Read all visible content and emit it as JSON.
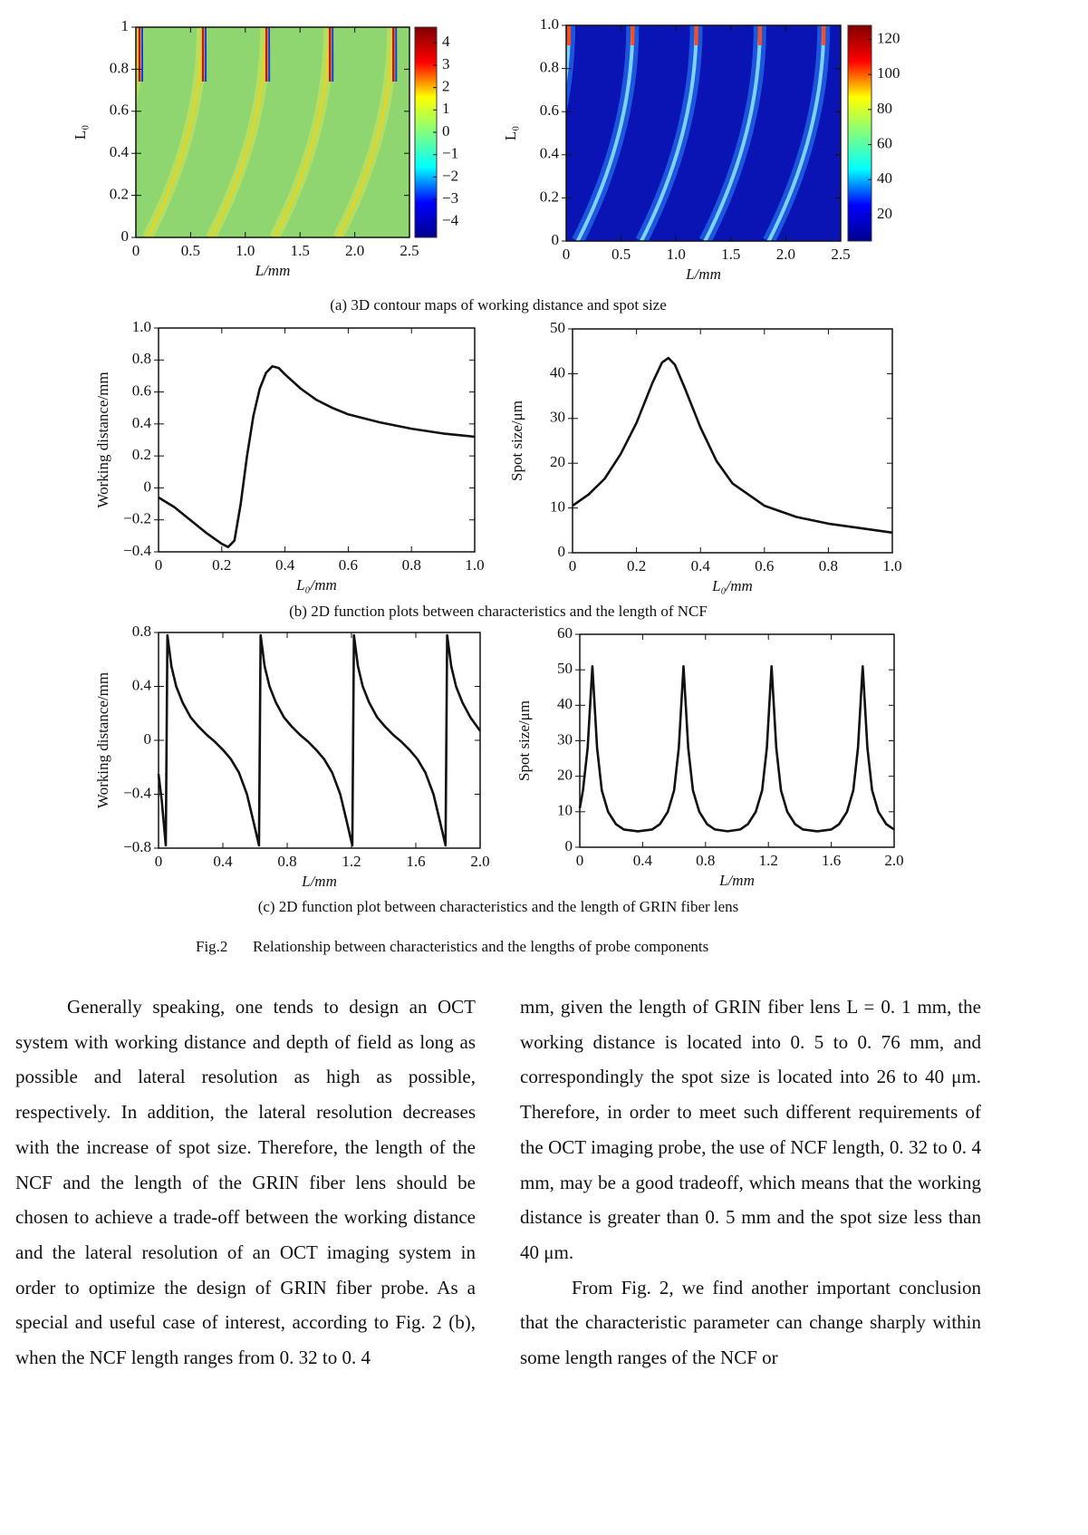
{
  "chart_data": [
    {
      "type": "contour",
      "xlabel": "L/mm",
      "ylabel": "L₀",
      "xlim": [
        0,
        2.5
      ],
      "ylim": [
        0,
        1
      ],
      "xticks": [
        0,
        0.5,
        {
          "value": 1,
          "label": "1.0"
        },
        1.5,
        {
          "value": 2,
          "label": "2.0"
        },
        2.5
      ],
      "yticks": [
        0,
        0.2,
        0.4,
        0.6,
        0.8,
        1
      ],
      "colormap": "jet",
      "clim": [
        -4.7,
        4.7
      ],
      "cticks": [
        {
          "value": -4,
          "label": "−4"
        },
        {
          "value": -3,
          "label": "−3"
        },
        {
          "value": -2,
          "label": "−2"
        },
        {
          "value": -1,
          "label": "−1"
        },
        0,
        1,
        2,
        3,
        4
      ]
    },
    {
      "type": "contour",
      "xlabel": "L/mm",
      "ylabel": "L₀",
      "xlim": [
        0,
        2.5
      ],
      "ylim": [
        0,
        1
      ],
      "xticks": [
        0,
        0.5,
        {
          "value": 1,
          "label": "1.0"
        },
        1.5,
        {
          "value": 2,
          "label": "2.0"
        },
        2.5
      ],
      "yticks": [
        0,
        0.2,
        0.4,
        0.6,
        0.8,
        {
          "value": 1,
          "label": "1.0"
        }
      ],
      "colormap": "jet",
      "clim": [
        5,
        128
      ],
      "cticks": [
        20,
        40,
        60,
        80,
        100,
        120
      ]
    },
    {
      "type": "line",
      "xlabel": "L₀/mm",
      "ylabel": "Working distance/mm",
      "color": "#111111",
      "xlim": [
        0,
        1
      ],
      "ylim": [
        -0.4,
        1
      ],
      "xticks": [
        0,
        0.2,
        0.4,
        0.6,
        0.8,
        {
          "value": 1,
          "label": "1.0"
        }
      ],
      "yticks": [
        {
          "value": -0.4,
          "label": "−0.4"
        },
        {
          "value": -0.2,
          "label": "−0.2"
        },
        0,
        0.2,
        0.4,
        0.6,
        0.8,
        {
          "value": 1,
          "label": "1.0"
        }
      ],
      "x": [
        0,
        0.05,
        0.1,
        0.15,
        0.2,
        0.22,
        0.24,
        0.26,
        0.28,
        0.3,
        0.32,
        0.34,
        0.36,
        0.38,
        0.4,
        0.45,
        0.5,
        0.55,
        0.6,
        0.7,
        0.8,
        0.9,
        1
      ],
      "values": [
        -0.06,
        -0.12,
        -0.2,
        -0.28,
        -0.35,
        -0.37,
        -0.33,
        -0.1,
        0.2,
        0.45,
        0.62,
        0.72,
        0.76,
        0.75,
        0.71,
        0.62,
        0.55,
        0.5,
        0.46,
        0.41,
        0.37,
        0.34,
        0.32
      ]
    },
    {
      "type": "line",
      "xlabel": "L₀/mm",
      "ylabel": "Spot size/μm",
      "color": "#111111",
      "xlim": [
        0,
        1
      ],
      "ylim": [
        0,
        50
      ],
      "xticks": [
        0,
        0.2,
        0.4,
        0.6,
        0.8,
        {
          "value": 1,
          "label": "1.0"
        }
      ],
      "yticks": [
        0,
        10,
        20,
        30,
        40,
        50
      ],
      "x": [
        0,
        0.05,
        0.1,
        0.15,
        0.2,
        0.25,
        0.28,
        0.3,
        0.32,
        0.35,
        0.4,
        0.45,
        0.5,
        0.6,
        0.7,
        0.8,
        0.9,
        1
      ],
      "values": [
        10.5,
        13,
        16.5,
        22,
        29,
        38,
        42.5,
        43.5,
        42,
        37,
        28,
        20.5,
        15.5,
        10.5,
        8,
        6.5,
        5.5,
        4.5
      ]
    },
    {
      "type": "line",
      "xlabel": "L/mm",
      "ylabel": "Working distance/mm",
      "color": "#111111",
      "xlim": [
        0,
        2
      ],
      "ylim": [
        -0.8,
        0.8
      ],
      "xticks": [
        0,
        0.4,
        0.8,
        1.2,
        1.6,
        {
          "value": 2,
          "label": "2.0"
        }
      ],
      "yticks": [
        {
          "value": -0.8,
          "label": "−0.8"
        },
        {
          "value": -0.4,
          "label": "−0.4"
        },
        0,
        0.4,
        0.8
      ],
      "x": [
        0,
        0.02,
        0.045,
        0.055,
        0.08,
        0.11,
        0.15,
        0.2,
        0.25,
        0.3,
        0.35,
        0.4,
        0.45,
        0.5,
        0.55,
        0.59,
        0.625,
        0.635,
        0.66,
        0.69,
        0.73,
        0.78,
        0.83,
        0.88,
        0.93,
        0.98,
        1.03,
        1.08,
        1.13,
        1.17,
        1.205,
        1.215,
        1.24,
        1.27,
        1.31,
        1.36,
        1.41,
        1.46,
        1.51,
        1.56,
        1.61,
        1.66,
        1.71,
        1.75,
        1.785,
        1.795,
        1.82,
        1.85,
        1.89,
        1.94,
        2
      ],
      "values": [
        -0.25,
        -0.45,
        -0.78,
        0.78,
        0.55,
        0.4,
        0.28,
        0.17,
        0.1,
        0.04,
        -0.01,
        -0.07,
        -0.14,
        -0.24,
        -0.4,
        -0.6,
        -0.78,
        0.78,
        0.55,
        0.4,
        0.28,
        0.17,
        0.1,
        0.04,
        -0.01,
        -0.07,
        -0.14,
        -0.24,
        -0.4,
        -0.6,
        -0.78,
        0.78,
        0.55,
        0.4,
        0.28,
        0.17,
        0.1,
        0.04,
        -0.01,
        -0.07,
        -0.14,
        -0.24,
        -0.4,
        -0.6,
        -0.78,
        0.78,
        0.55,
        0.4,
        0.28,
        0.17,
        0.07
      ]
    },
    {
      "type": "line",
      "xlabel": "L/mm",
      "ylabel": "Spot size/μm",
      "color": "#111111",
      "xlim": [
        0,
        2
      ],
      "ylim": [
        0,
        60
      ],
      "xticks": [
        0,
        0.4,
        0.8,
        1.2,
        1.6,
        {
          "value": 2,
          "label": "2.0"
        }
      ],
      "yticks": [
        0,
        10,
        20,
        30,
        40,
        50,
        60
      ],
      "x": [
        0,
        0.02,
        0.05,
        0.08,
        0.11,
        0.14,
        0.18,
        0.23,
        0.28,
        0.37,
        0.46,
        0.51,
        0.56,
        0.6,
        0.63,
        0.66,
        0.69,
        0.72,
        0.76,
        0.81,
        0.86,
        0.94,
        1.02,
        1.07,
        1.12,
        1.16,
        1.19,
        1.22,
        1.25,
        1.28,
        1.32,
        1.37,
        1.42,
        1.51,
        1.6,
        1.65,
        1.7,
        1.74,
        1.77,
        1.8,
        1.83,
        1.86,
        1.9,
        1.95,
        2
      ],
      "values": [
        11,
        16,
        28,
        51,
        28,
        16,
        10,
        6.5,
        5,
        4.5,
        5,
        6.5,
        10,
        16,
        28,
        51,
        28,
        16,
        10,
        6.5,
        5,
        4.5,
        5,
        6.5,
        10,
        16,
        28,
        51,
        28,
        16,
        10,
        6.5,
        5,
        4.5,
        5,
        6.5,
        10,
        16,
        28,
        51,
        28,
        16,
        10,
        6.5,
        5
      ]
    }
  ],
  "figure": {
    "subcaptions": [
      "(a) 3D contour maps of working distance and spot size",
      "(b) 2D function plots between characteristics and the length of NCF",
      "(c) 2D function plot between characteristics and the length of GRIN fiber lens"
    ],
    "label": "Fig.2",
    "caption": "Relationship between characteristics and the lengths of probe components"
  },
  "body": {
    "left": [
      "Generally speaking, one tends to design an OCT system with working distance and depth of field as long as possible and lateral resolution as high as possible, respectively. In addition, the lateral resolution decreases with the increase of spot size. Therefore, the length of the NCF and the length of the GRIN fiber lens should be chosen to achieve a trade-off between the working distance and the lateral resolution of an OCT imaging system in order to optimize the design of GRIN fiber probe. As a special and useful case of interest, according to Fig. 2 (b), when the NCF length ranges from 0. 32 to 0. 4"
    ],
    "right": [
      "mm, given the length of GRIN fiber lens L = 0. 1 mm, the working distance is located into 0. 5 to 0. 76 mm, and correspondingly the spot size is located into 26 to 40 μm. Therefore, in order to meet such different requirements of the OCT imaging probe, the use of NCF length, 0. 32 to 0. 4 mm, may be a good tradeoff, which means that the working distance is greater than 0. 5 mm and the spot size less than 40 μm.",
      "From Fig. 2, we find another important conclusion that the characteristic parameter can change sharply within some length ranges of the NCF or"
    ]
  }
}
